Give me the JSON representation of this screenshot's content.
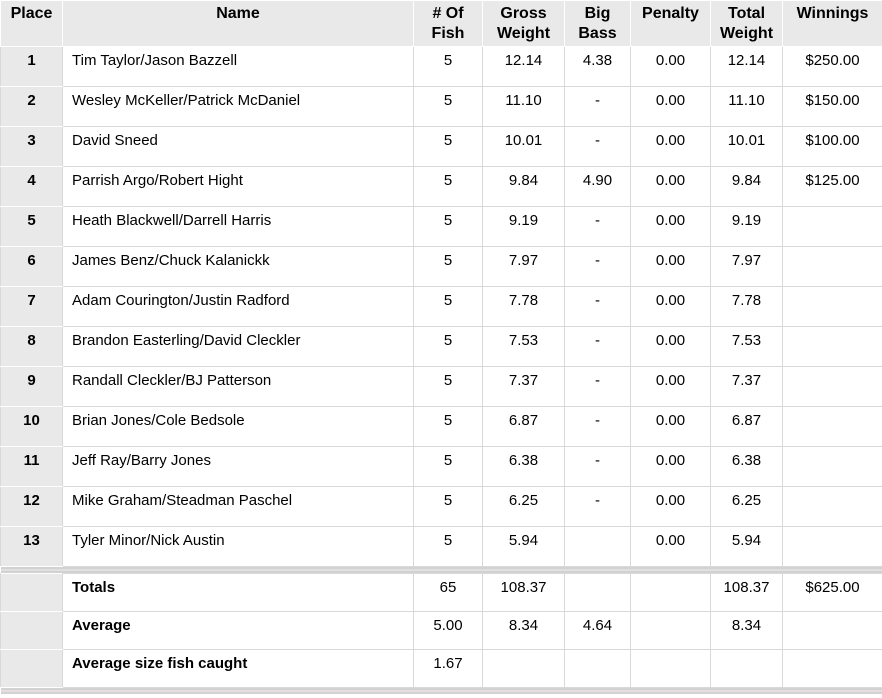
{
  "table": {
    "columns": [
      "Place",
      "Name",
      "# Of Fish",
      "Gross Weight",
      "Big Bass",
      "Penalty",
      "Total Weight",
      "Winnings"
    ],
    "rows": [
      {
        "place": "1",
        "name": "Tim Taylor/Jason Bazzell",
        "fish": "5",
        "gross": "12.14",
        "big_bass": "4.38",
        "penalty": "0.00",
        "total": "12.14",
        "winnings": "$250.00"
      },
      {
        "place": "2",
        "name": "Wesley McKeller/Patrick McDaniel",
        "fish": "5",
        "gross": "11.10",
        "big_bass": "-",
        "penalty": "0.00",
        "total": "11.10",
        "winnings": "$150.00"
      },
      {
        "place": "3",
        "name": "David Sneed",
        "fish": "5",
        "gross": "10.01",
        "big_bass": "-",
        "penalty": "0.00",
        "total": "10.01",
        "winnings": "$100.00"
      },
      {
        "place": "4",
        "name": "Parrish Argo/Robert Hight",
        "fish": "5",
        "gross": "9.84",
        "big_bass": "4.90",
        "penalty": "0.00",
        "total": "9.84",
        "winnings": "$125.00"
      },
      {
        "place": "5",
        "name": "Heath Blackwell/Darrell Harris",
        "fish": "5",
        "gross": "9.19",
        "big_bass": "-",
        "penalty": "0.00",
        "total": "9.19",
        "winnings": ""
      },
      {
        "place": "6",
        "name": "James Benz/Chuck Kalanickk",
        "fish": "5",
        "gross": "7.97",
        "big_bass": "-",
        "penalty": "0.00",
        "total": "7.97",
        "winnings": ""
      },
      {
        "place": "7",
        "name": "Adam Courington/Justin Radford",
        "fish": "5",
        "gross": "7.78",
        "big_bass": "-",
        "penalty": "0.00",
        "total": "7.78",
        "winnings": ""
      },
      {
        "place": "8",
        "name": "Brandon Easterling/David Cleckler",
        "fish": "5",
        "gross": "7.53",
        "big_bass": "-",
        "penalty": "0.00",
        "total": "7.53",
        "winnings": ""
      },
      {
        "place": "9",
        "name": "Randall Cleckler/BJ Patterson",
        "fish": "5",
        "gross": "7.37",
        "big_bass": "-",
        "penalty": "0.00",
        "total": "7.37",
        "winnings": ""
      },
      {
        "place": "10",
        "name": "Brian Jones/Cole Bedsole",
        "fish": "5",
        "gross": "6.87",
        "big_bass": "-",
        "penalty": "0.00",
        "total": "6.87",
        "winnings": ""
      },
      {
        "place": "11",
        "name": "Jeff Ray/Barry Jones",
        "fish": "5",
        "gross": "6.38",
        "big_bass": "-",
        "penalty": "0.00",
        "total": "6.38",
        "winnings": ""
      },
      {
        "place": "12",
        "name": "Mike Graham/Steadman Paschel",
        "fish": "5",
        "gross": "6.25",
        "big_bass": "-",
        "penalty": "0.00",
        "total": "6.25",
        "winnings": ""
      },
      {
        "place": "13",
        "name": "Tyler Minor/Nick Austin",
        "fish": "5",
        "gross": "5.94",
        "big_bass": "",
        "penalty": "0.00",
        "total": "5.94",
        "winnings": ""
      }
    ],
    "footer": [
      {
        "place": "",
        "name": "Totals",
        "fish": "65",
        "gross": "108.37",
        "big_bass": "",
        "penalty": "",
        "total": "108.37",
        "winnings": "$625.00"
      },
      {
        "place": "",
        "name": "Average",
        "fish": "5.00",
        "gross": "8.34",
        "big_bass": "4.64",
        "penalty": "",
        "total": "8.34",
        "winnings": ""
      },
      {
        "place": "",
        "name": "Average size fish caught",
        "fish": "1.67",
        "gross": "",
        "big_bass": "",
        "penalty": "",
        "total": "",
        "winnings": ""
      }
    ]
  },
  "colors": {
    "header_bg": "#e9e9e9",
    "grid_border": "#d9d9d9",
    "separator_bar": "#d2d2d2",
    "text": "#000000",
    "row_bg": "#ffffff"
  }
}
